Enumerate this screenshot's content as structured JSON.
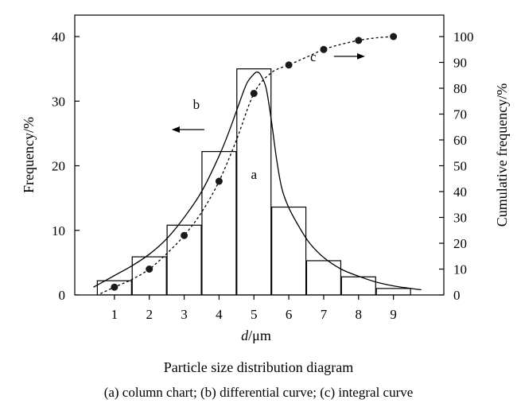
{
  "chart_data": {
    "type": "bar",
    "xlabel_italic": "d",
    "xlabel_unit": "/μm",
    "ylabel": "Frequency/%",
    "y2label": "Cumulative frequency/%",
    "xlim": [
      0,
      10
    ],
    "ylim": [
      0,
      40
    ],
    "y2lim": [
      0,
      100
    ],
    "x_ticks": [
      1,
      2,
      3,
      4,
      5,
      6,
      7,
      8,
      9
    ],
    "y_ticks": [
      0,
      10,
      20,
      30,
      40
    ],
    "y2_ticks": [
      0,
      10,
      20,
      30,
      40,
      50,
      60,
      70,
      80,
      90,
      100
    ],
    "grid": false,
    "series": [
      {
        "label": "a",
        "kind": "column",
        "x": [
          1,
          2,
          3,
          4,
          5,
          6,
          7,
          8,
          9
        ],
        "values": [
          2.2,
          5.9,
          10.8,
          22.2,
          35.0,
          13.6,
          5.3,
          2.8,
          1.0
        ]
      },
      {
        "label": "b",
        "kind": "differential-curve",
        "axis": "left",
        "x": [
          0.4,
          1.0,
          1.5,
          2.0,
          2.5,
          3.0,
          3.5,
          4.0,
          4.3,
          4.6,
          4.8,
          5.0,
          5.1,
          5.2,
          5.35,
          5.5,
          5.65,
          5.8,
          6.0,
          6.3,
          6.6,
          7.0,
          7.5,
          8.0,
          8.5,
          9.0,
          9.5,
          9.8
        ],
        "values": [
          1.2,
          3.0,
          4.5,
          6.3,
          8.7,
          12.0,
          16.0,
          21.5,
          25.5,
          30.0,
          32.8,
          34.2,
          34.5,
          34.0,
          32.0,
          27.0,
          21.0,
          16.5,
          13.5,
          10.5,
          8.0,
          5.8,
          4.0,
          2.9,
          2.0,
          1.4,
          1.0,
          0.8
        ]
      },
      {
        "label": "c",
        "kind": "integral-curve",
        "axis": "right",
        "x": [
          1,
          2,
          3,
          4,
          5,
          6,
          7,
          8,
          9
        ],
        "values": [
          3,
          10,
          23,
          44,
          78,
          89,
          95,
          98.5,
          100
        ],
        "curve_x": [
          0.6,
          1,
          1.5,
          2,
          2.5,
          3,
          3.5,
          4,
          4.5,
          5,
          5.5,
          6,
          6.5,
          7,
          7.5,
          8,
          8.5,
          9
        ],
        "curve_values": [
          0.5,
          3,
          6,
          10,
          16,
          23,
          32,
          44,
          60,
          78,
          86,
          89,
          92,
          95,
          97,
          98.5,
          99.5,
          100
        ]
      }
    ],
    "annotations": [
      {
        "text": "a",
        "x": 5,
        "y": 18,
        "axis": "left"
      },
      {
        "text": "b",
        "x": 3.35,
        "y": 28.8,
        "axis": "left",
        "arrow": "left"
      },
      {
        "text": "c",
        "x": 6.7,
        "y": 90.5,
        "axis": "right",
        "arrow": "right"
      }
    ]
  },
  "caption": {
    "title": "Particle size distribution diagram",
    "subtitle": "(a) column chart; (b) differential curve; (c) integral curve"
  }
}
